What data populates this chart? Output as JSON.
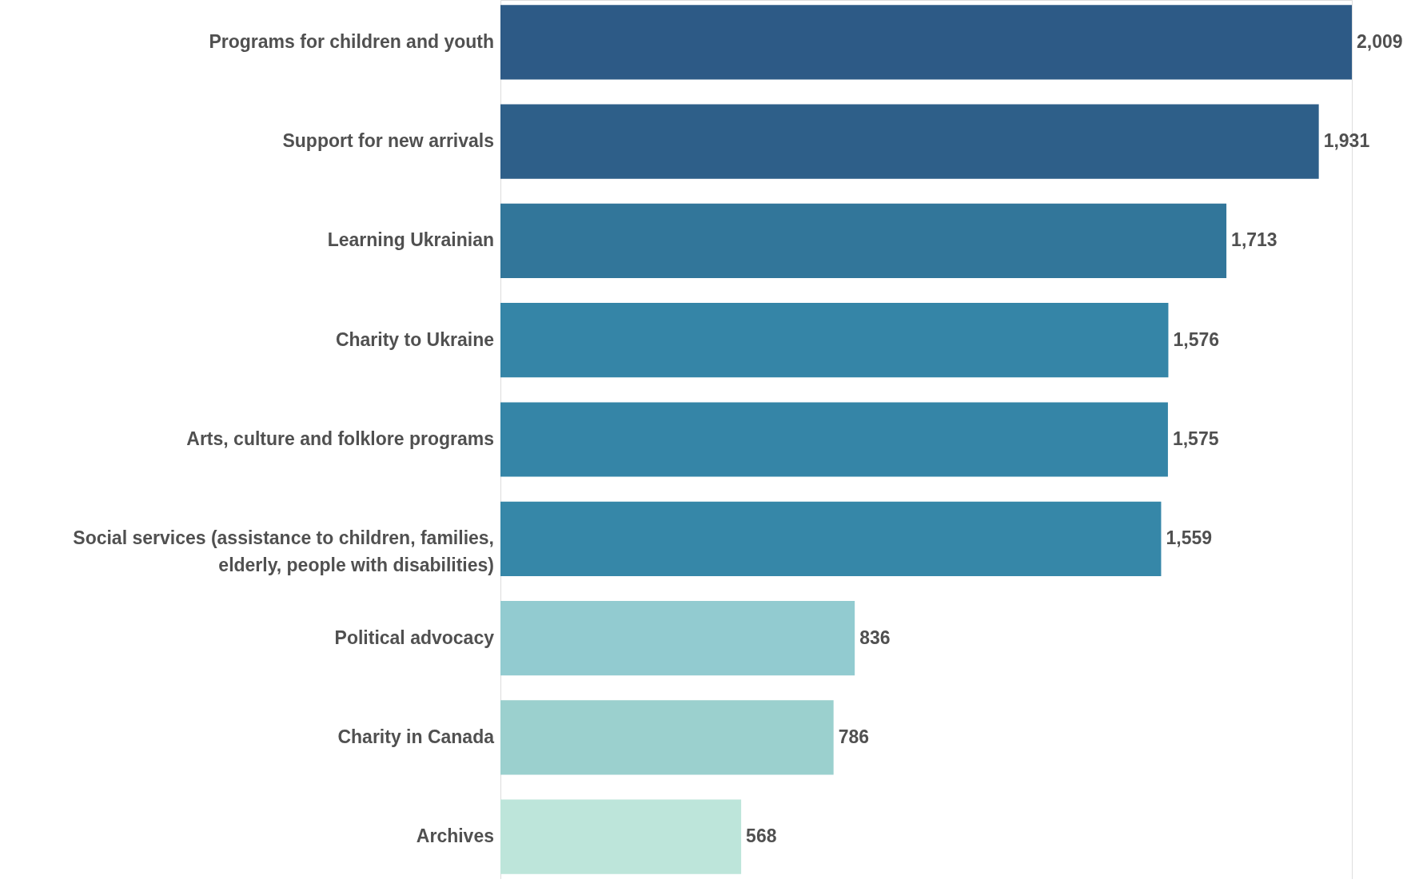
{
  "chart_data": {
    "type": "bar",
    "orientation": "horizontal",
    "value_labels": [
      "2,009",
      "1,931",
      "1,713",
      "1,576",
      "1,575",
      "1,559",
      "836",
      "786",
      "568"
    ],
    "categories": [
      "Programs for children and youth",
      "Support for new arrivals",
      "Learning Ukrainian",
      "Charity to Ukraine",
      "Arts, culture and folklore programs",
      "Social services (assistance to children, families, elderly, people with disabilities)",
      "Political advocacy",
      "Charity in Canada",
      "Archives"
    ],
    "values": [
      2009,
      1931,
      1713,
      1576,
      1575,
      1559,
      836,
      786,
      568
    ],
    "colors": [
      "#2d5a86",
      "#2e5f89",
      "#32769a",
      "#3585a7",
      "#3585a7",
      "#3687a8",
      "#92cbd0",
      "#9bd0ce",
      "#bde5da"
    ]
  }
}
